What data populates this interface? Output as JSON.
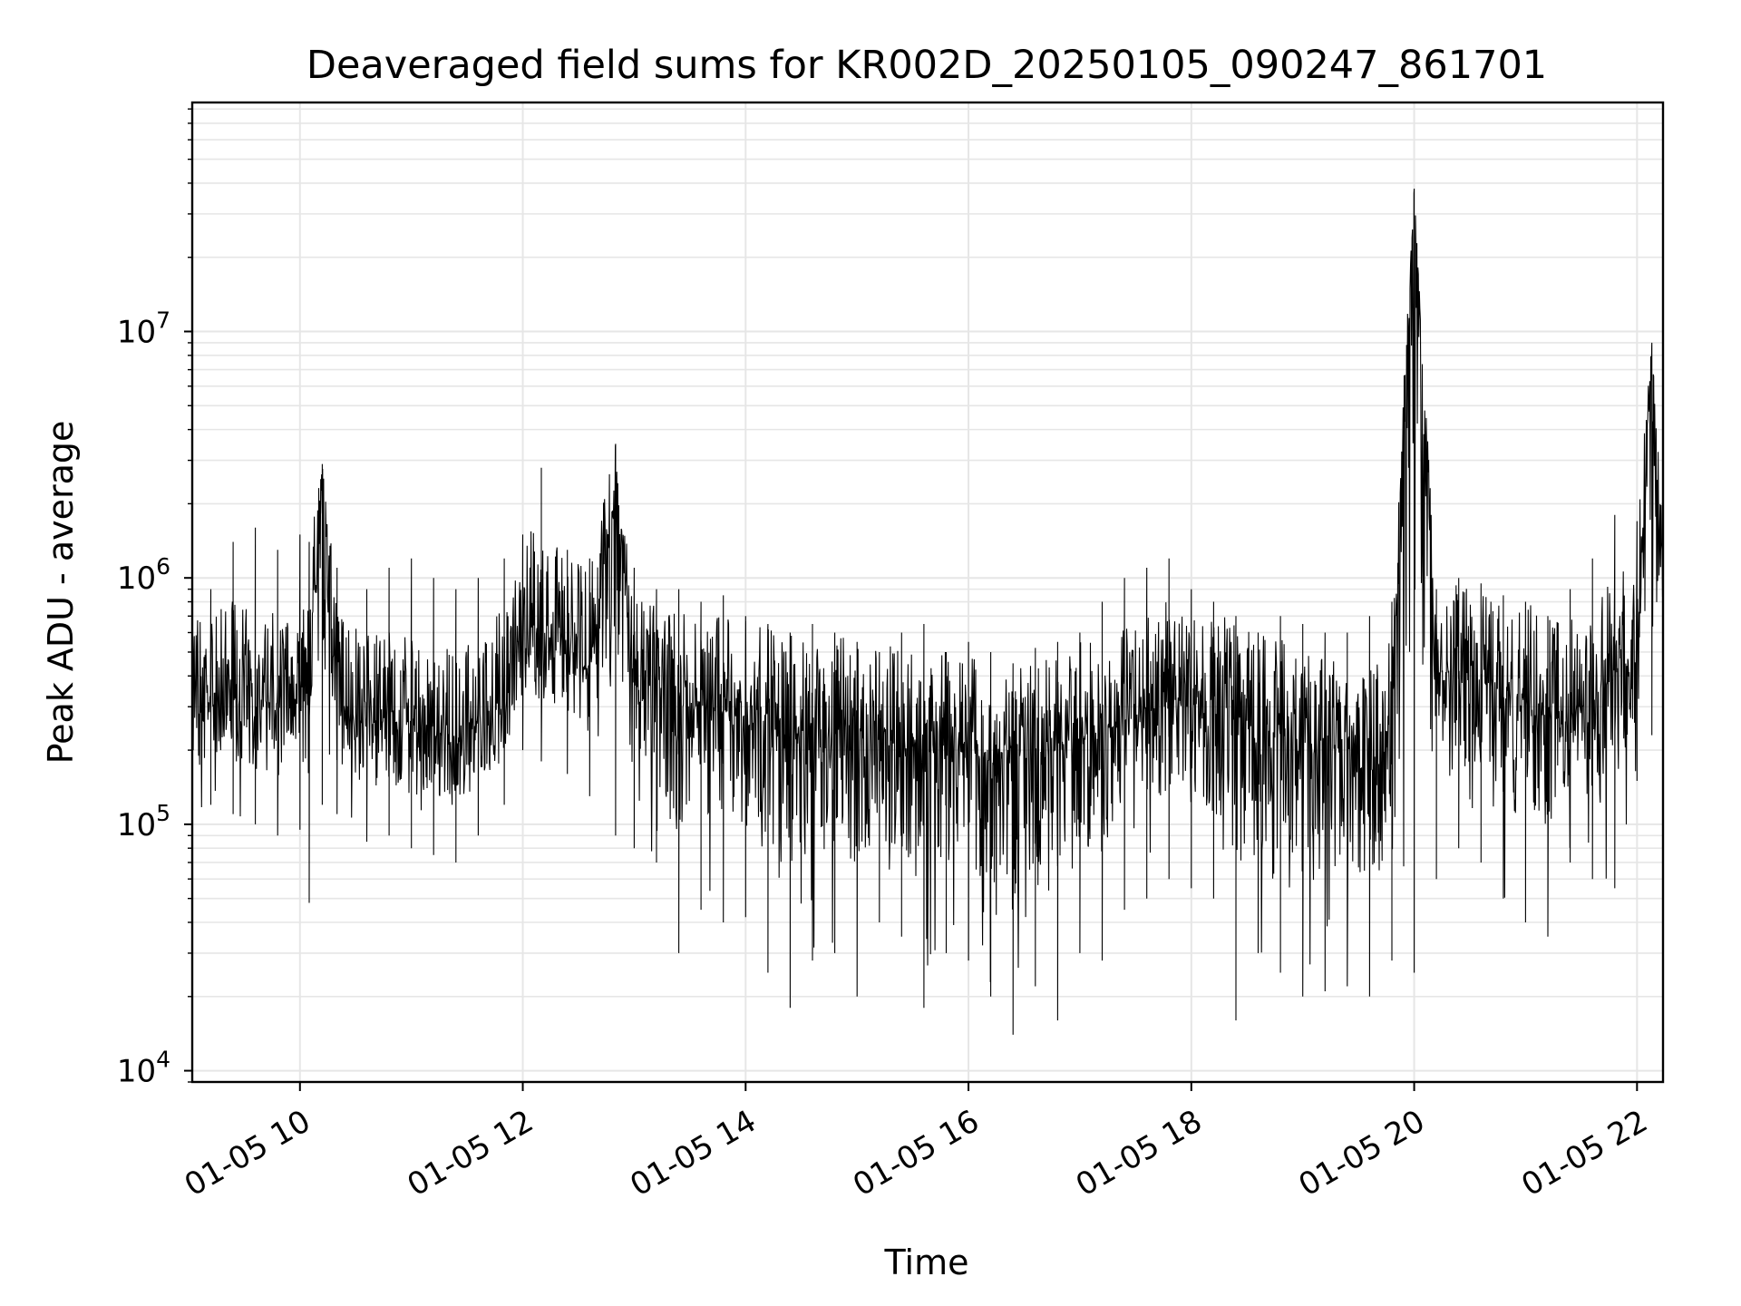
{
  "chart_data": {
    "type": "line",
    "title": "Deaveraged field sums for KR002D_20250105_090247_861701",
    "xlabel": "Time",
    "ylabel": "Peak ADU - average",
    "y_scale": "log",
    "ylim": [
      9000,
      85000000
    ],
    "xlim": [
      "01-05 09:02",
      "01-05 22:14"
    ],
    "grid": true,
    "line_color": "#000000",
    "grid_color": "#e6e6e6",
    "x_ticks": [
      {
        "t": "01-05 10:00",
        "label": "01-05 10"
      },
      {
        "t": "01-05 12:00",
        "label": "01-05 12"
      },
      {
        "t": "01-05 14:00",
        "label": "01-05 14"
      },
      {
        "t": "01-05 16:00",
        "label": "01-05 16"
      },
      {
        "t": "01-05 18:00",
        "label": "01-05 18"
      },
      {
        "t": "01-05 20:00",
        "label": "01-05 20"
      },
      {
        "t": "01-05 22:00",
        "label": "01-05 22"
      }
    ],
    "y_ticks": [
      {
        "value": 10000,
        "base": "10",
        "exp": "4"
      },
      {
        "value": 100000,
        "base": "10",
        "exp": "5"
      },
      {
        "value": 1000000,
        "base": "10",
        "exp": "6"
      },
      {
        "value": 10000000,
        "base": "10",
        "exp": "7"
      }
    ],
    "series": [
      {
        "x": [
          "01-05 09:02",
          "01-05 09:12",
          "01-05 09:24",
          "01-05 09:36",
          "01-05 09:48",
          "01-05 10:00",
          "01-05 10:05",
          "01-05 10:12",
          "01-05 10:20",
          "01-05 10:36",
          "01-05 10:48",
          "01-05 11:00",
          "01-05 11:12",
          "01-05 11:24",
          "01-05 11:36",
          "01-05 11:50",
          "01-05 12:00",
          "01-05 12:10",
          "01-05 12:24",
          "01-05 12:36",
          "01-05 12:50",
          "01-05 13:00",
          "01-05 13:12",
          "01-05 13:24",
          "01-05 13:36",
          "01-05 13:48",
          "01-05 14:00",
          "01-05 14:12",
          "01-05 14:24",
          "01-05 14:36",
          "01-05 14:48",
          "01-05 15:00",
          "01-05 15:12",
          "01-05 15:24",
          "01-05 15:36",
          "01-05 15:48",
          "01-05 16:00",
          "01-05 16:12",
          "01-05 16:24",
          "01-05 16:36",
          "01-05 16:48",
          "01-05 17:00",
          "01-05 17:12",
          "01-05 17:24",
          "01-05 17:36",
          "01-05 17:48",
          "01-05 18:00",
          "01-05 18:12",
          "01-05 18:24",
          "01-05 18:36",
          "01-05 18:48",
          "01-05 19:00",
          "01-05 19:12",
          "01-05 19:24",
          "01-05 19:36",
          "01-05 19:48",
          "01-05 20:00",
          "01-05 20:12",
          "01-05 20:24",
          "01-05 20:36",
          "01-05 20:48",
          "01-05 21:00",
          "01-05 21:12",
          "01-05 21:24",
          "01-05 21:36",
          "01-05 21:48",
          "01-05 22:00",
          "01-05 22:08",
          "01-05 22:14"
        ],
        "y": [
          320000,
          300000,
          340000,
          280000,
          310000,
          330000,
          300000,
          2900000,
          310000,
          250000,
          270000,
          240000,
          230000,
          210000,
          260000,
          300000,
          650000,
          600000,
          520000,
          420000,
          2500000,
          370000,
          330000,
          310000,
          300000,
          280000,
          270000,
          260000,
          250000,
          240000,
          250000,
          230000,
          220000,
          210000,
          200000,
          210000,
          190000,
          180000,
          190000,
          180000,
          200000,
          220000,
          240000,
          260000,
          280000,
          330000,
          310000,
          290000,
          270000,
          250000,
          230000,
          220000,
          210000,
          200000,
          220000,
          240000,
          38000000,
          400000,
          420000,
          380000,
          350000,
          330000,
          300000,
          280000,
          320000,
          400000,
          480000,
          9000000,
          600000
        ],
        "lo": [
          85000,
          120000,
          110000,
          100000,
          90000,
          95000,
          48000,
          120000,
          110000,
          85000,
          90000,
          80000,
          75000,
          70000,
          90000,
          120000,
          200000,
          180000,
          160000,
          130000,
          90000,
          80000,
          70000,
          30000,
          45000,
          40000,
          42000,
          25000,
          18000,
          28000,
          30000,
          20000,
          40000,
          35000,
          18000,
          30000,
          28000,
          20000,
          14000,
          22000,
          16000,
          30000,
          28000,
          45000,
          50000,
          60000,
          55000,
          50000,
          16000,
          30000,
          25000,
          20000,
          21000,
          22000,
          20000,
          28000,
          25000,
          60000,
          80000,
          70000,
          50000,
          40000,
          35000,
          70000,
          60000,
          55000,
          150000,
          230000,
          300000
        ],
        "hi": [
          700000,
          900000,
          1400000,
          1600000,
          1300000,
          1500000,
          1400000,
          2900000,
          1100000,
          900000,
          1100000,
          1200000,
          1000000,
          900000,
          1000000,
          1200000,
          1500000,
          2800000,
          1300000,
          1200000,
          3500000,
          1100000,
          900000,
          900000,
          800000,
          850000,
          700000,
          650000,
          600000,
          650000,
          600000,
          550000,
          500000,
          600000,
          650000,
          500000,
          550000,
          500000,
          450000,
          520000,
          550000,
          600000,
          800000,
          1000000,
          1100000,
          1200000,
          900000,
          800000,
          700000,
          600000,
          700000,
          650000,
          600000,
          600000,
          700000,
          800000,
          38000000,
          900000,
          1000000,
          950000,
          850000,
          800000,
          700000,
          900000,
          1200000,
          1800000,
          1700000,
          9000000,
          1500000
        ]
      }
    ]
  }
}
